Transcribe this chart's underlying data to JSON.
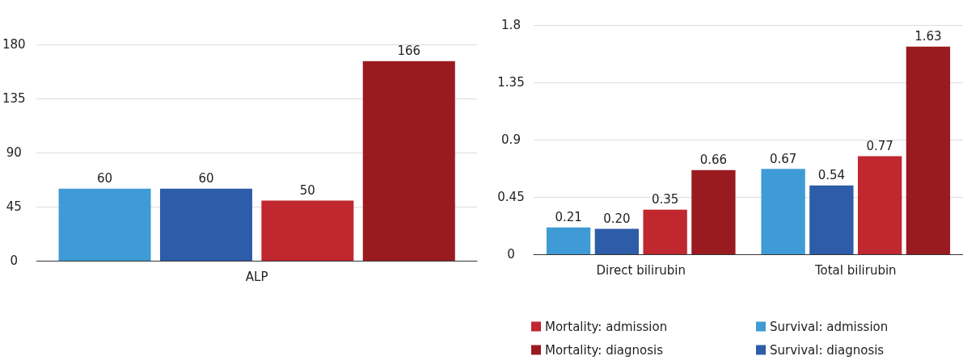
{
  "chart_data": [
    {
      "type": "bar",
      "categories": [
        "ALP"
      ],
      "ylim": [
        0,
        180
      ],
      "yticks": [
        0,
        45,
        90,
        135,
        180
      ],
      "grid": "y",
      "legend": false,
      "data_labels": true,
      "series": [
        {
          "color": "#3f9bd6",
          "values": [
            60
          ]
        },
        {
          "color": "#2d5ca8",
          "values": [
            60
          ]
        },
        {
          "color": "#c0272f",
          "values": [
            50
          ]
        },
        {
          "color": "#991b20",
          "values": [
            166
          ]
        }
      ]
    },
    {
      "type": "bar",
      "categories": [
        "Direct bilirubin",
        "Total bilirubin"
      ],
      "ylim": [
        0,
        1.8
      ],
      "yticks": [
        0,
        0.45,
        0.9,
        1.35,
        1.8
      ],
      "grid": "y",
      "legend": "bottom",
      "series": [
        {
          "name": "Survival: admission",
          "color": "#3f9bd6",
          "values": [
            0.21,
            0.67
          ],
          "value_labels": [
            "0.21",
            "0.67"
          ]
        },
        {
          "name": "Survival: diagnosis",
          "color": "#2d5ca8",
          "values": [
            0.2,
            0.54
          ],
          "value_labels": [
            "0.20",
            "0.54"
          ]
        },
        {
          "name": "Mortality: admission",
          "color": "#c0272f",
          "values": [
            0.35,
            0.77
          ],
          "value_labels": [
            "0.35",
            "0.77"
          ]
        },
        {
          "name": "Mortality: diagnosis",
          "color": "#991b20",
          "values": [
            0.66,
            1.63
          ],
          "value_labels": [
            "0.66",
            "1.63"
          ]
        }
      ]
    }
  ]
}
